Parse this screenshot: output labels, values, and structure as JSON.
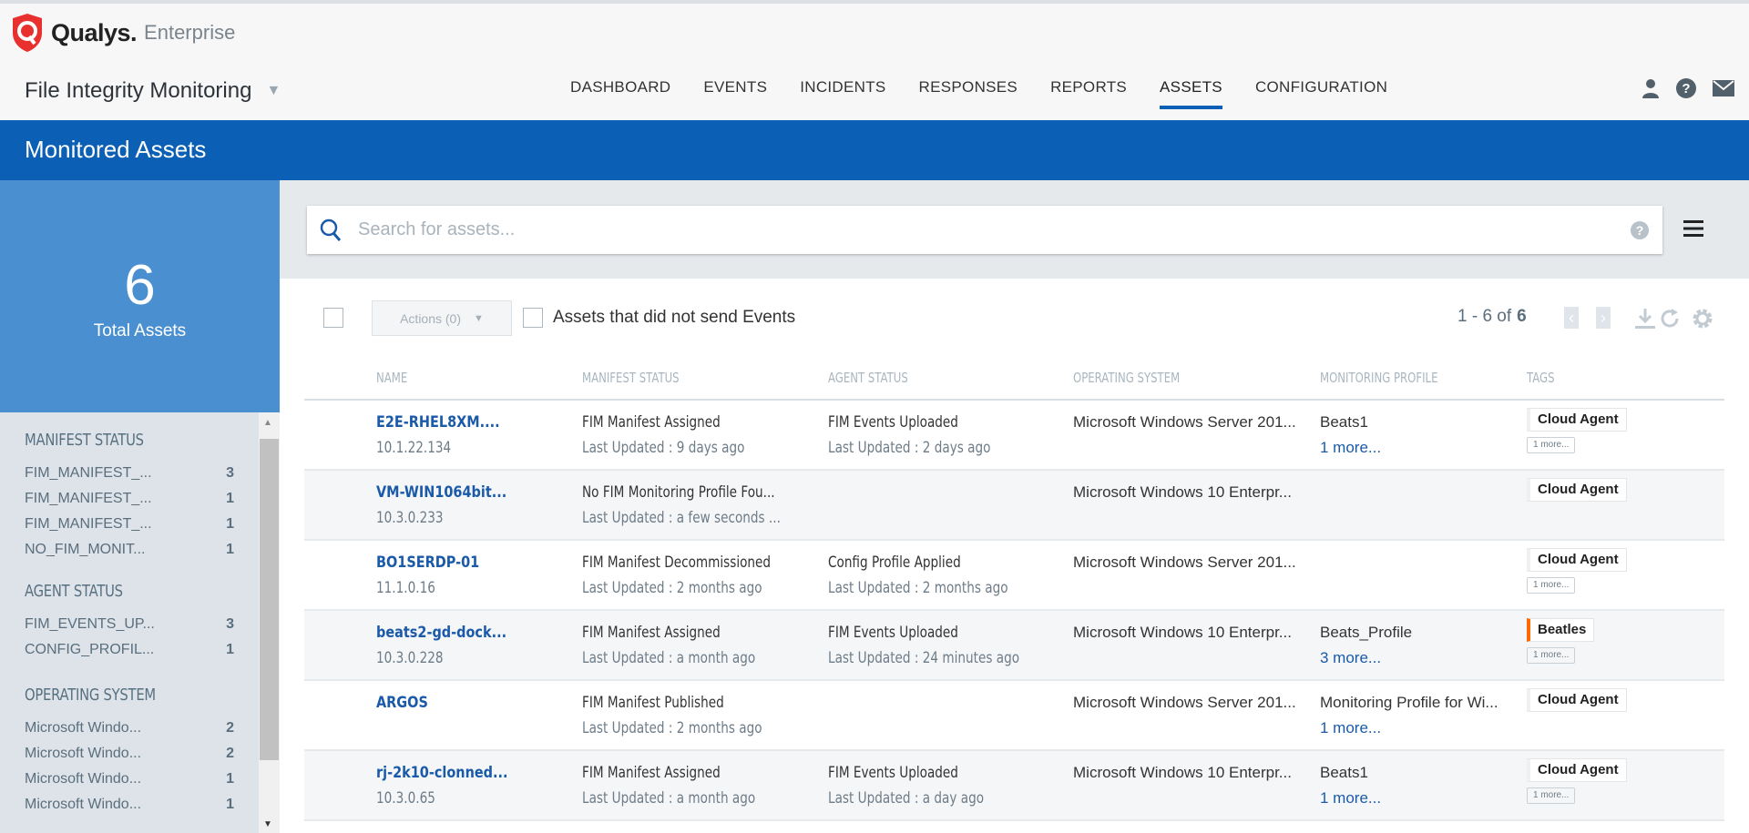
{
  "brand": {
    "name": "Qualys.",
    "edition": "Enterprise"
  },
  "app": {
    "title": "File Integrity Monitoring"
  },
  "nav": [
    {
      "label": "DASHBOARD"
    },
    {
      "label": "EVENTS"
    },
    {
      "label": "INCIDENTS"
    },
    {
      "label": "RESPONSES"
    },
    {
      "label": "REPORTS"
    },
    {
      "label": "ASSETS",
      "active": true
    },
    {
      "label": "CONFIGURATION"
    }
  ],
  "page": {
    "title": "Monitored Assets"
  },
  "stat": {
    "value": "6",
    "label": "Total Assets"
  },
  "sidebar": {
    "sections": [
      {
        "title": "MANIFEST STATUS",
        "items": [
          {
            "label": "FIM_MANIFEST_...",
            "count": "3"
          },
          {
            "label": "FIM_MANIFEST_...",
            "count": "1"
          },
          {
            "label": "FIM_MANIFEST_...",
            "count": "1"
          },
          {
            "label": "NO_FIM_MONIT...",
            "count": "1"
          }
        ]
      },
      {
        "title": "AGENT STATUS",
        "items": [
          {
            "label": "FIM_EVENTS_UP...",
            "count": "3"
          },
          {
            "label": "CONFIG_PROFIL...",
            "count": "1"
          }
        ]
      },
      {
        "title": "OPERATING SYSTEM",
        "items": [
          {
            "label": "Microsoft Windo...",
            "count": "2"
          },
          {
            "label": "Microsoft Windo...",
            "count": "2"
          },
          {
            "label": "Microsoft Windo...",
            "count": "1"
          },
          {
            "label": "Microsoft Windo...",
            "count": "1"
          }
        ]
      }
    ]
  },
  "search": {
    "placeholder": "Search for assets..."
  },
  "toolbar": {
    "actions_label": "Actions (0)",
    "filter_label": "Assets that did not send Events",
    "pager_range": "1 - 6 of",
    "pager_total": "6"
  },
  "table": {
    "columns": [
      "NAME",
      "MANIFEST STATUS",
      "AGENT STATUS",
      "OPERATING SYSTEM",
      "MONITORING PROFILE",
      "TAGS"
    ],
    "rows": [
      {
        "name": "E2E-RHEL8XM....",
        "ip": "10.1.22.134",
        "manifest": "FIM Manifest Assigned",
        "manifest_updated": "Last Updated : 9 days ago",
        "agent": "FIM Events Uploaded",
        "agent_updated": "Last Updated : 2 days ago",
        "os": "Microsoft Windows Server 201...",
        "profile": "Beats1",
        "profile_more": "1 more...",
        "tag": "Cloud Agent",
        "tag_more": "1 more..."
      },
      {
        "name": "VM-WIN1064bit...",
        "ip": "10.3.0.233",
        "manifest": "No FIM Monitoring Profile Fou...",
        "manifest_updated": "Last Updated : a few seconds ...",
        "agent": "",
        "agent_updated": "",
        "os": "Microsoft Windows 10 Enterpr...",
        "profile": "",
        "profile_more": "",
        "tag": "Cloud Agent",
        "tag_more": ""
      },
      {
        "name": "BO1SERDP-01",
        "ip": "11.1.0.16",
        "manifest": "FIM Manifest Decommissioned",
        "manifest_updated": "Last Updated : 2 months ago",
        "agent": "Config Profile Applied",
        "agent_updated": "Last Updated : 2 months ago",
        "os": "Microsoft Windows Server 201...",
        "profile": "",
        "profile_more": "",
        "tag": "Cloud Agent",
        "tag_more": "1 more..."
      },
      {
        "name": "beats2-gd-dock...",
        "ip": "10.3.0.228",
        "manifest": "FIM Manifest Assigned",
        "manifest_updated": "Last Updated : a month ago",
        "agent": "FIM Events Uploaded",
        "agent_updated": "Last Updated : 24 minutes ago",
        "os": "Microsoft Windows 10 Enterpr...",
        "profile": "Beats_Profile",
        "profile_more": "3 more...",
        "tag": "Beatles",
        "tag_color": "#ff6a00",
        "tag_more": "1 more..."
      },
      {
        "name": "ARGOS",
        "ip": "",
        "manifest": "FIM Manifest Published",
        "manifest_updated": "Last Updated : 2 months ago",
        "agent": "",
        "agent_updated": "",
        "os": "Microsoft Windows Server 201...",
        "profile": "Monitoring Profile for Wi...",
        "profile_more": "1 more...",
        "tag": "Cloud Agent",
        "tag_more": ""
      },
      {
        "name": "rj-2k10-clonned...",
        "ip": "10.3.0.65",
        "manifest": "FIM Manifest Assigned",
        "manifest_updated": "Last Updated : a month ago",
        "agent": "FIM Events Uploaded",
        "agent_updated": "Last Updated : a day ago",
        "os": "Microsoft Windows 10 Enterpr...",
        "profile": "Beats1",
        "profile_more": "1 more...",
        "tag": "Cloud Agent",
        "tag_more": "1 more..."
      }
    ]
  },
  "colors": {
    "brand_blue": "#0b5fb4",
    "stat_blue": "#4a8fd0",
    "link": "#1a5aa9",
    "qualys_red": "#e8312f",
    "tag_orange": "#ff6a00"
  }
}
